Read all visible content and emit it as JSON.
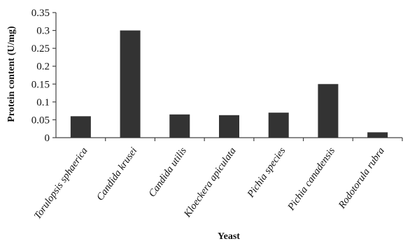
{
  "chart_data": {
    "type": "bar",
    "title": "",
    "xlabel": "Yeast",
    "ylabel": "Protein content (U/mg)",
    "categories": [
      "Torulopsis sphaerica",
      "Candida krusei",
      "Candida utilis",
      "Kloeckera apiculata",
      "Pichia species",
      "Pichia canadensis",
      "Rodotorula rubra"
    ],
    "values": [
      0.06,
      0.3,
      0.065,
      0.063,
      0.07,
      0.15,
      0.015
    ],
    "ylim": [
      0,
      0.35
    ],
    "yticks": [
      0,
      0.05,
      0.1,
      0.15,
      0.2,
      0.25,
      0.3,
      0.35
    ],
    "ytick_labels": [
      "0",
      "0.05",
      "0.1",
      "0.15",
      "0.2",
      "0.25",
      "0.3",
      "0.35"
    ],
    "grid": false,
    "legend": "none",
    "colors": {
      "bar": "#333333",
      "axis": "#444444"
    }
  }
}
